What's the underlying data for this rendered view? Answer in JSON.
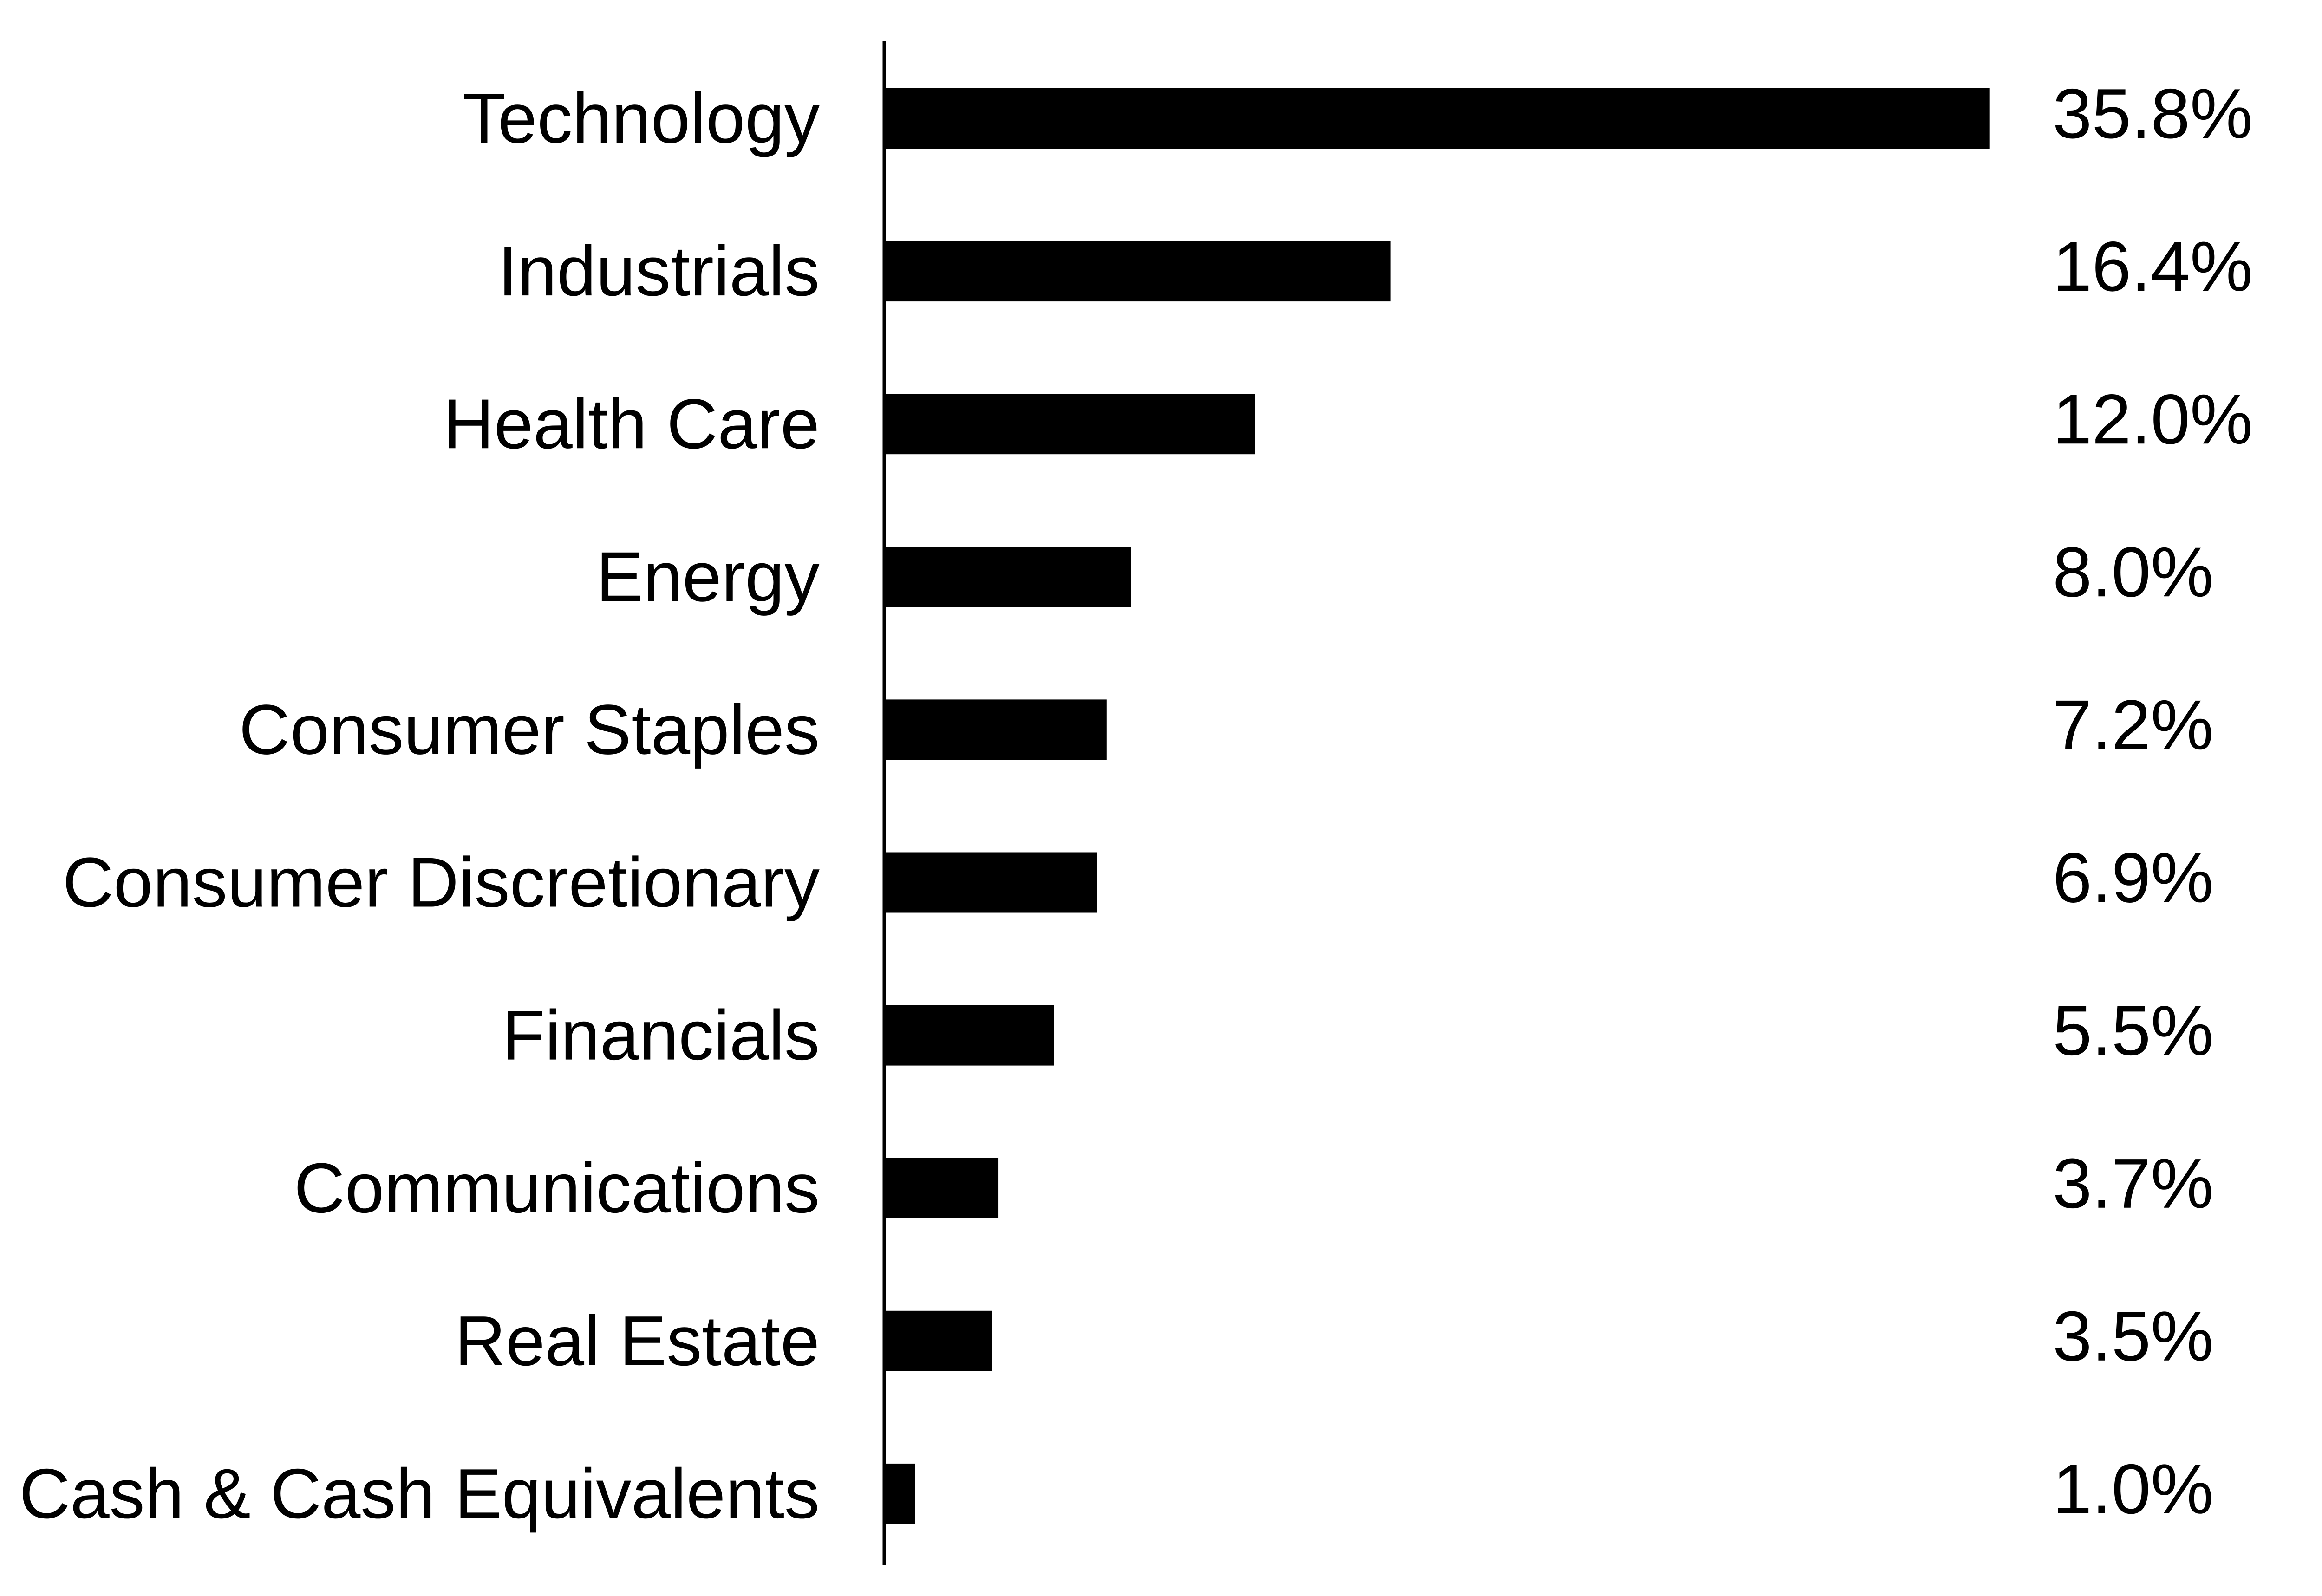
{
  "chart_data": {
    "type": "bar",
    "orientation": "horizontal",
    "categories": [
      "Technology",
      "Industrials",
      "Health Care",
      "Energy",
      "Consumer Staples",
      "Consumer Discretionary",
      "Financials",
      "Communications",
      "Real Estate",
      "Cash & Cash Equivalents"
    ],
    "values": [
      35.8,
      16.4,
      12.0,
      8.0,
      7.2,
      6.9,
      5.5,
      3.7,
      3.5,
      1.0
    ],
    "value_labels": [
      "35.8%",
      "16.4%",
      "12.0%",
      "8.0%",
      "7.2%",
      "6.9%",
      "5.5%",
      "3.7%",
      "3.5%",
      "1.0%"
    ],
    "unit": "%",
    "bar_color": "#000000",
    "axis_color": "#000000",
    "grid": false,
    "legend": "none"
  }
}
